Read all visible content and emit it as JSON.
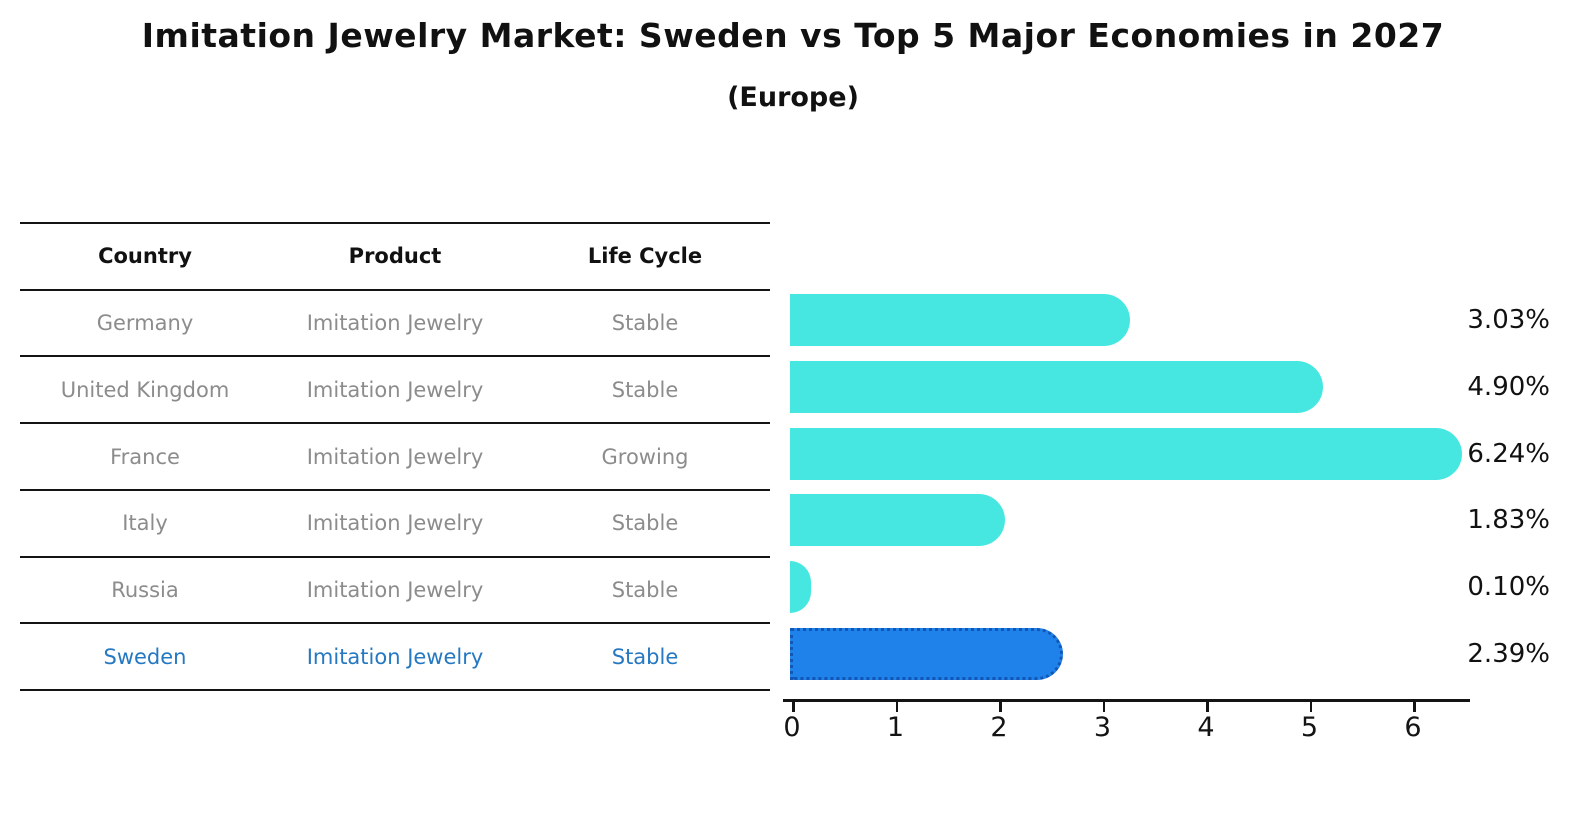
{
  "title": "Imitation Jewelry Market: Sweden vs Top 5 Major Economies in 2027",
  "subtitle": "(Europe)",
  "table": {
    "headers": [
      "Country",
      "Product",
      "Life Cycle"
    ],
    "rows": [
      {
        "country": "Germany",
        "product": "Imitation Jewelry",
        "life_cycle": "Stable",
        "highlight": false
      },
      {
        "country": "United Kingdom",
        "product": "Imitation Jewelry",
        "life_cycle": "Stable",
        "highlight": false
      },
      {
        "country": "France",
        "product": "Imitation Jewelry",
        "life_cycle": "Growing",
        "highlight": false
      },
      {
        "country": "Italy",
        "product": "Imitation Jewelry",
        "life_cycle": "Stable",
        "highlight": false
      },
      {
        "country": "Russia",
        "product": "Imitation Jewelry",
        "life_cycle": "Stable",
        "highlight": false
      },
      {
        "country": "Sweden",
        "product": "Imitation Jewelry",
        "life_cycle": "Stable",
        "highlight": true
      }
    ]
  },
  "chart_data": {
    "type": "bar",
    "orientation": "horizontal",
    "title": "Imitation Jewelry Market: Sweden vs Top 5 Major Economies in 2027 (Europe)",
    "categories": [
      "Germany",
      "United Kingdom",
      "France",
      "Italy",
      "Russia",
      "Sweden"
    ],
    "values": [
      3.03,
      4.9,
      6.24,
      1.83,
      0.1,
      2.39
    ],
    "value_labels": [
      "3.03%",
      "4.90%",
      "6.24%",
      "1.83%",
      "0.10%",
      "2.39%"
    ],
    "highlight_index": 5,
    "x_ticks": [
      "0",
      "1",
      "2",
      "3",
      "4",
      "5",
      "6"
    ],
    "xlim": [
      0,
      6.55
    ],
    "grid": false,
    "legend": "none",
    "bar_color": "#47e7e1",
    "highlight_color": "#1f82ea",
    "highlight_border_color": "#1257b5",
    "highlight_text_color": "#2578c2",
    "text_color": "#8c8c8c"
  }
}
